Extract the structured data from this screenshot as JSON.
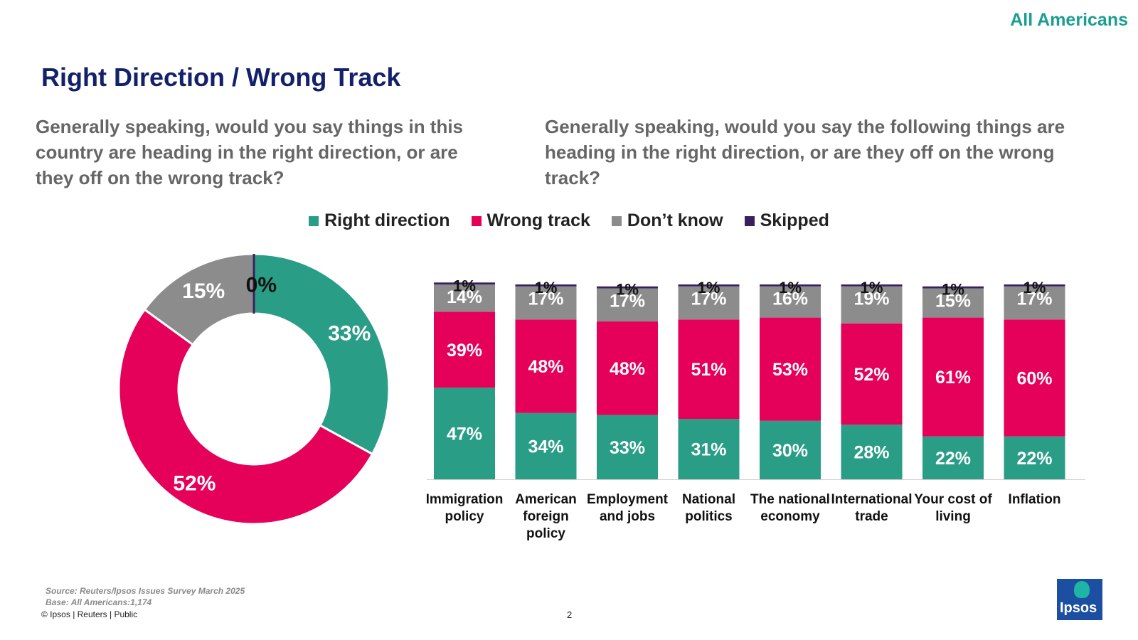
{
  "header": {
    "corner_label": "All Americans",
    "title": "Right Direction / Wrong Track",
    "question_left": "Generally speaking, would you say things in this country are heading in the right direction, or are they off on the wrong track?",
    "question_right": "Generally speaking, would you say the following things are heading in the right direction, or are they off on the wrong track?"
  },
  "legend": [
    {
      "label": "Right direction",
      "color": "#2a9d87"
    },
    {
      "label": "Wrong track",
      "color": "#e5005a"
    },
    {
      "label": "Don’t know",
      "color": "#8c8c8c"
    },
    {
      "label": "Skipped",
      "color": "#3b1f5e"
    }
  ],
  "chart_data": [
    {
      "type": "pie",
      "labels": [
        "Right direction",
        "Wrong track",
        "Don’t know",
        "Skipped"
      ],
      "values": [
        33,
        52,
        15,
        0
      ],
      "value_labels": [
        "33%",
        "52%",
        "15%",
        "0%"
      ],
      "donut": true,
      "colors": [
        "#2a9d87",
        "#e5005a",
        "#8c8c8c",
        "#3b1f5e"
      ]
    },
    {
      "type": "bar",
      "stacked": true,
      "categories": [
        "Immigration policy",
        "American foreign policy",
        "Employment and jobs",
        "National politics",
        "The national economy",
        "International trade",
        "Your cost of living",
        "Inflation"
      ],
      "series": [
        {
          "name": "Right direction",
          "color": "#2a9d87",
          "values": [
            47,
            34,
            33,
            31,
            30,
            28,
            22,
            22
          ]
        },
        {
          "name": "Wrong track",
          "color": "#e5005a",
          "values": [
            39,
            48,
            48,
            51,
            53,
            52,
            61,
            60
          ]
        },
        {
          "name": "Don’t know",
          "color": "#8c8c8c",
          "values": [
            14,
            17,
            17,
            17,
            16,
            19,
            15,
            17
          ]
        },
        {
          "name": "Skipped",
          "color": "#3b1f5e",
          "values": [
            1,
            1,
            1,
            1,
            1,
            1,
            1,
            1
          ]
        }
      ],
      "ylim": [
        0,
        100
      ]
    }
  ],
  "footer": {
    "source": "Source: Reuters/Ipsos Issues Survey March 2025",
    "base": "Base: All Americans:1,174",
    "copyright": "© Ipsos | Reuters | Public",
    "page_number": "2",
    "logo_text": "Ipsos"
  }
}
